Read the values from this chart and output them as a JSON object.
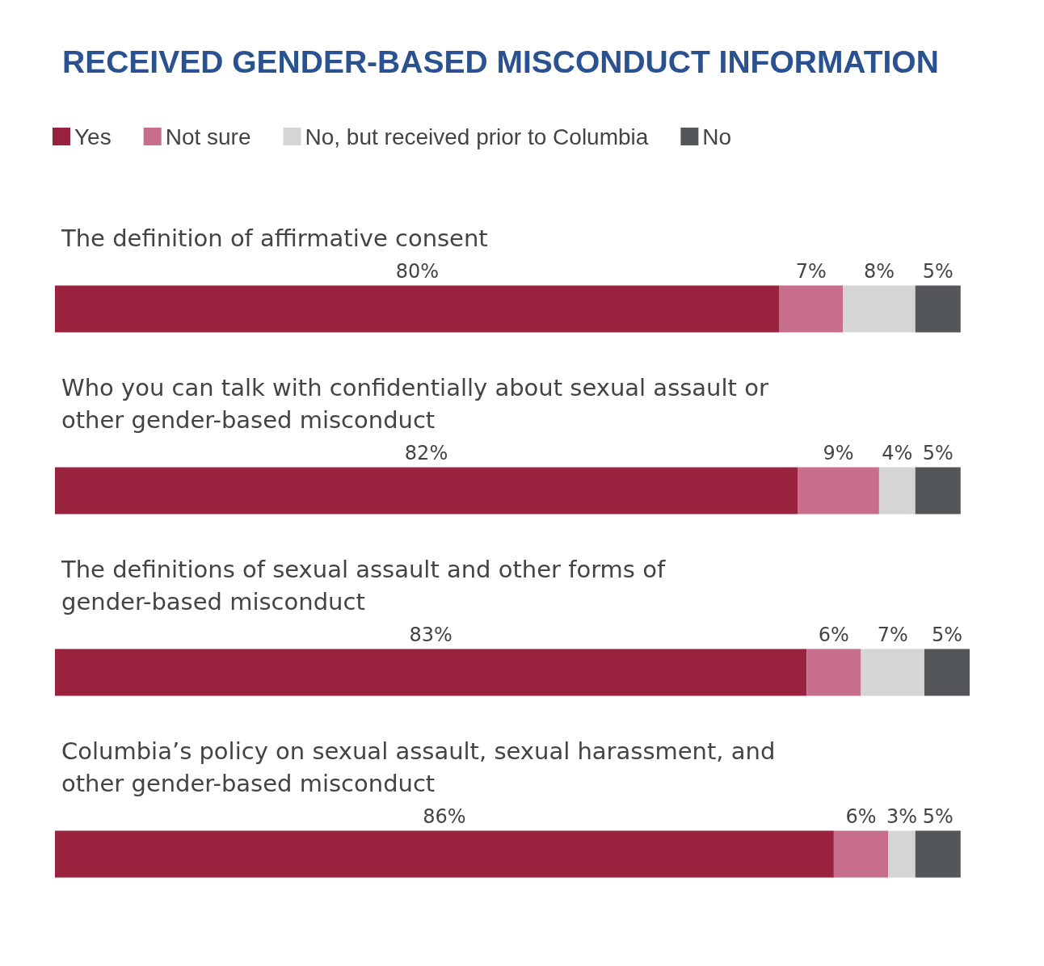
{
  "chart_data": {
    "type": "bar",
    "orientation": "horizontal",
    "stacked": true,
    "title": "RECEIVED GENDER-BASED MISCONDUCT INFORMATION",
    "legend": "top left",
    "categories": [
      "The definition of affirmative consent",
      "Who you can talk with confidentially about sexual assault or other gender-based misconduct",
      "The definitions of sexual assault and other forms of gender-based misconduct",
      "Columbia’s policy on sexual assault, sexual harassment, and other gender-based misconduct"
    ],
    "series": [
      {
        "name": "Yes",
        "color": "#99223f",
        "values": [
          80,
          82,
          83,
          86
        ],
        "value_labels": [
          "80%",
          "82%",
          "83%",
          "86%"
        ]
      },
      {
        "name": "Not sure",
        "color": "#c76e8c",
        "values": [
          7,
          9,
          6,
          6
        ],
        "value_labels": [
          "7%",
          "9%",
          "6%",
          "6%"
        ]
      },
      {
        "name": "No, but received prior to Columbia",
        "color": "#d5d5d5",
        "values": [
          8,
          4,
          7,
          3
        ],
        "value_labels": [
          "8%",
          "4%",
          "7%",
          "3%"
        ]
      },
      {
        "name": "No",
        "color": "#53575a",
        "values": [
          5,
          5,
          5,
          5
        ],
        "value_labels": [
          "5%",
          "5%",
          "5%",
          "5%"
        ]
      }
    ]
  }
}
